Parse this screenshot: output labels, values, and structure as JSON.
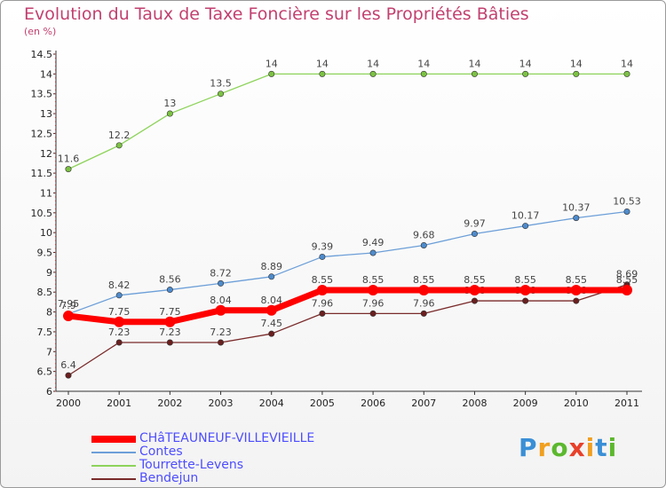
{
  "header": {
    "title": "Evolution du Taux de Taxe Foncière sur les Propriétés Bâties",
    "unit": "(en %)"
  },
  "chart_data": {
    "type": "line",
    "title": "Evolution du Taux de Taxe Foncière sur les Propriétés Bâties",
    "ylabel": "(en %)",
    "xlabel": "",
    "ylim": [
      6,
      14.5
    ],
    "yticks": [
      "6",
      "6.5",
      "7",
      "7.5",
      "8",
      "8.5",
      "9",
      "9.5",
      "10",
      "10.5",
      "11",
      "11.5",
      "12",
      "12.5",
      "13",
      "13.5",
      "14",
      "14.5"
    ],
    "categories": [
      "2000",
      "2001",
      "2002",
      "2003",
      "2004",
      "2005",
      "2006",
      "2007",
      "2008",
      "2009",
      "2010",
      "2011"
    ],
    "series": [
      {
        "name": "Tourrette-Levens",
        "color": "#8dd35a",
        "marker": "#7cc243",
        "values": [
          11.6,
          12.2,
          13,
          13.5,
          14,
          14,
          14,
          14,
          14,
          14,
          14,
          14
        ],
        "labels": [
          "11.6",
          "12.2",
          "13",
          "13.5",
          "14",
          "14",
          "14",
          "14",
          "14",
          "14",
          "14",
          "14"
        ]
      },
      {
        "name": "Contes",
        "color": "#6c9fd8",
        "marker": "#4e8bcc",
        "values": [
          7.95,
          8.42,
          8.56,
          8.72,
          8.89,
          9.39,
          9.49,
          9.68,
          9.97,
          10.17,
          10.37,
          10.53
        ],
        "labels": [
          "7.95",
          "8.42",
          "8.56",
          "8.72",
          "8.89",
          "9.39",
          "9.49",
          "9.68",
          "9.97",
          "10.17",
          "10.37",
          "10.53"
        ]
      },
      {
        "name": "Bendejun",
        "color": "#7a2a2a",
        "marker": "#6b1f1f",
        "values": [
          6.4,
          7.23,
          7.23,
          7.23,
          7.45,
          7.96,
          7.96,
          7.96,
          8.28,
          8.28,
          8.28,
          8.69
        ],
        "labels": [
          "6.4",
          "7.23",
          "7.23",
          "7.23",
          "7.45",
          "7.96",
          "7.96",
          "7.96",
          "8.28",
          "8.28",
          "8.28",
          "8.69"
        ]
      },
      {
        "name": "CHâTEAUNEUF-VILLEVIEILLE",
        "color": "#ff0000",
        "marker": "#ff0000",
        "values": [
          7.9,
          7.75,
          7.75,
          8.04,
          8.04,
          8.55,
          8.55,
          8.55,
          8.55,
          8.55,
          8.55,
          8.55
        ],
        "labels": [
          "7.9",
          "7.75",
          "7.75",
          "8.04",
          "8.04",
          "8.55",
          "8.55",
          "8.55",
          "8.55",
          "8.55",
          "8.55",
          "8.55"
        ]
      }
    ],
    "legend": [
      "CHâTEAUNEUF-VILLEVIEILLE",
      "Contes",
      "Tourrette-Levens",
      "Bendejun"
    ],
    "legend_position": "bottom-left"
  },
  "legend": {
    "items": [
      {
        "label": "CHâTEAUNEUF-VILLEVIEILLE",
        "color": "#ff0000"
      },
      {
        "label": "Contes",
        "color": "#6c9fd8"
      },
      {
        "label": "Tourrette-Levens",
        "color": "#8dd35a"
      },
      {
        "label": "Bendejun",
        "color": "#7a2a2a"
      }
    ]
  },
  "logo": {
    "letters": [
      "P",
      "r",
      "o",
      "x",
      "i",
      "t",
      "i"
    ],
    "colors": [
      "#3a8fd6",
      "#f0a020",
      "#5cb82e",
      "#e8402a",
      "#f0a020",
      "#3a8fd6",
      "#5cb82e"
    ]
  }
}
